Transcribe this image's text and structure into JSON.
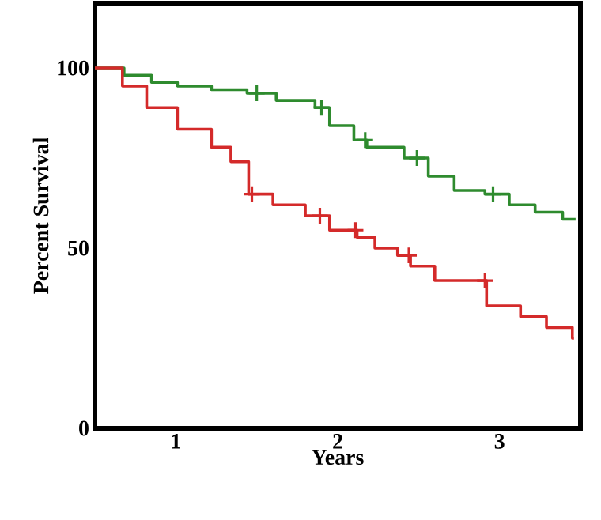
{
  "chart_data": {
    "type": "step",
    "xlabel": "Years",
    "ylabel": "Percent Survival",
    "xlim": [
      0.5,
      3.5
    ],
    "ylim": [
      0,
      118
    ],
    "xticks": [
      1,
      2,
      3
    ],
    "yticks": [
      0,
      50,
      100
    ],
    "series": [
      {
        "color": "#2e8b2e",
        "x": [
          0.5,
          0.68,
          0.85,
          1.01,
          1.22,
          1.44,
          1.62,
          1.86,
          1.95,
          2.1,
          2.18,
          2.41,
          2.56,
          2.72,
          2.91,
          3.06,
          3.22,
          3.39,
          3.47
        ],
        "values": [
          100,
          98,
          96,
          95,
          94,
          93,
          91,
          89,
          84,
          80,
          78,
          75,
          70,
          66,
          65,
          62,
          60,
          58,
          58
        ]
      },
      {
        "color": "#d42a2a",
        "x": [
          0.5,
          0.67,
          0.82,
          1.01,
          1.22,
          1.34,
          1.45,
          1.6,
          1.8,
          1.95,
          2.12,
          2.23,
          2.37,
          2.45,
          2.6,
          2.92,
          3.13,
          3.29,
          3.45,
          3.46
        ],
        "values": [
          100,
          95,
          89,
          83,
          78,
          74,
          65,
          62,
          59,
          55,
          53,
          50,
          48,
          45,
          41,
          34,
          31,
          28,
          25,
          25
        ]
      },
      {
        "type": "scatter",
        "marker": "cross",
        "color": "#2e8b2e",
        "x": [
          1.5,
          1.9,
          2.17,
          2.49,
          2.96
        ],
        "values": [
          93,
          89,
          80,
          75,
          65
        ]
      },
      {
        "type": "scatter",
        "marker": "cross",
        "color": "#d42a2a",
        "x": [
          1.47,
          1.89,
          2.11,
          2.44,
          2.91
        ],
        "values": [
          65,
          59,
          55,
          48,
          41
        ]
      }
    ]
  }
}
